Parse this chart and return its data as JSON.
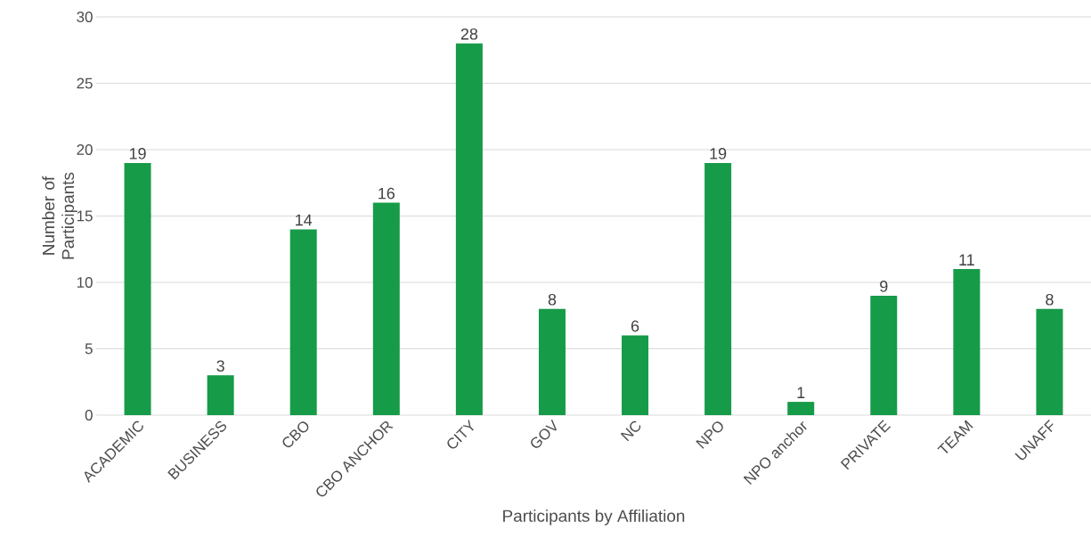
{
  "chart_data": {
    "type": "bar",
    "xlabel": "Participants by Affiliation",
    "ylabel": "Number of Participants",
    "categories": [
      "ACADEMIC",
      "BUSINESS",
      "CBO",
      "CBO ANCHOR",
      "CITY",
      "GOV",
      "NC",
      "NPO",
      "NPO anchor",
      "PRIVATE",
      "TEAM",
      "UNAFF"
    ],
    "values": [
      19,
      3,
      14,
      16,
      28,
      8,
      6,
      19,
      1,
      9,
      11,
      8
    ],
    "color": "#169b48",
    "ylim": [
      0,
      30
    ],
    "yticks": [
      0,
      5,
      10,
      15,
      20,
      25,
      30
    ],
    "grid": "y",
    "data_labels": true
  }
}
